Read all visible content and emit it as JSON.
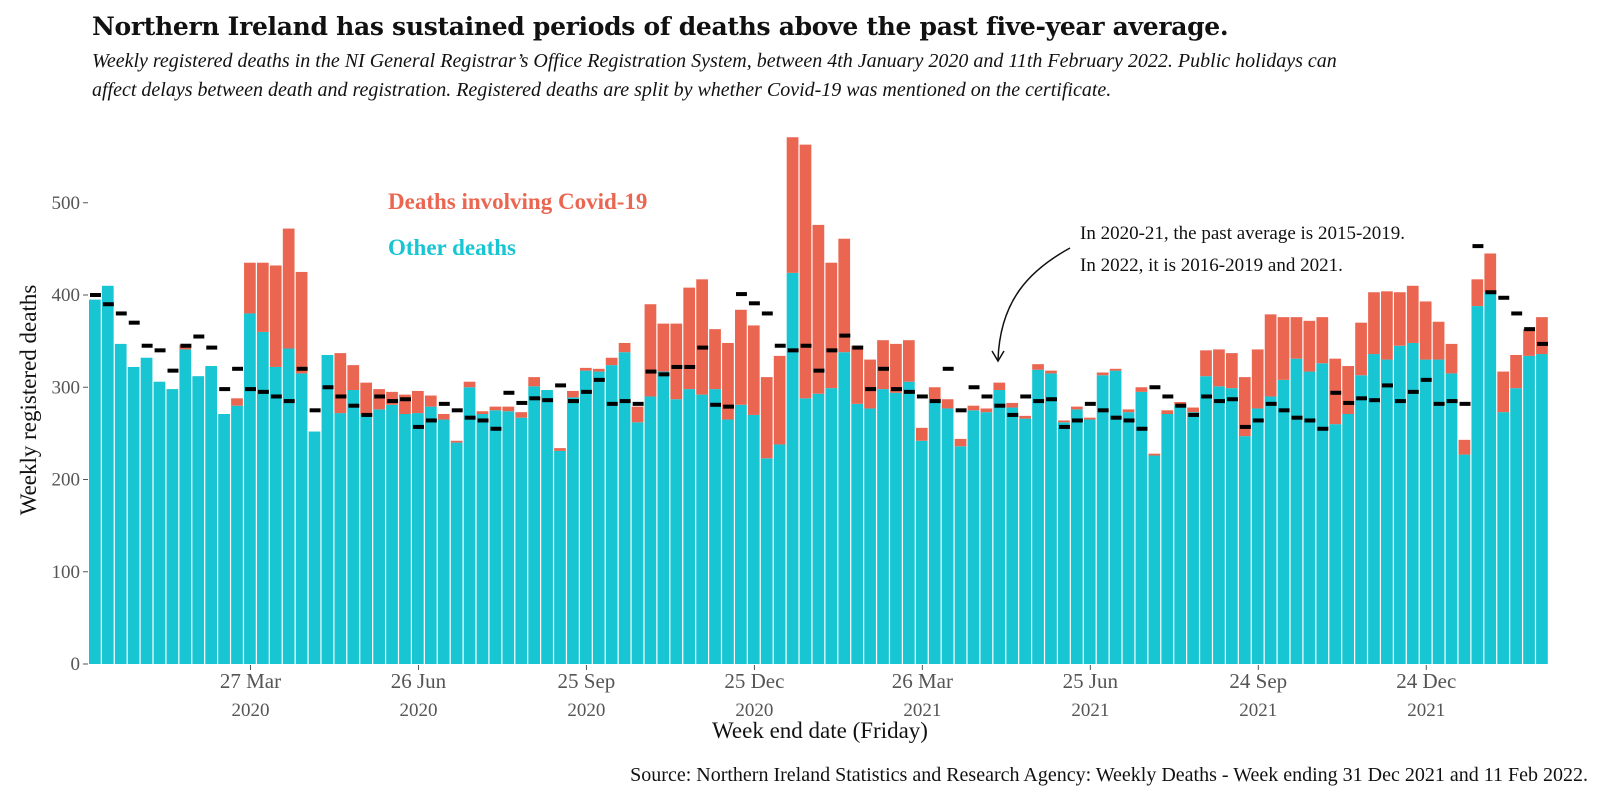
{
  "title": "Northern Ireland has sustained periods of deaths above the past five-year average.",
  "subtitle": "Weekly registered deaths in the NI General Registrar’s Office Registration System, between 4th January 2020 and 11th February 2022. Public holidays can affect delays between death and registration. Registered deaths are split by whether Covid-19 was mentioned on the certificate.",
  "source": "Source: Northern Ireland Statistics and Research Agency: Weekly Deaths - Week ending 31 Dec 2021 and 11 Feb 2022.",
  "annotation": {
    "line1": "In 2020-21, the past average is 2015-2019.",
    "line2": "In 2022, it is 2016-2019 and 2021."
  },
  "colors": {
    "covid": "#EB6651",
    "other": "#17C5D3",
    "average": "#000000"
  },
  "chart_data": {
    "type": "bar",
    "stacked": true,
    "xlabel": "Week end date (Friday)",
    "ylabel": "Weekly registered deaths",
    "ylim": [
      0,
      560
    ],
    "yticks": [
      0,
      100,
      200,
      300,
      400,
      500
    ],
    "x_tick_labels": [
      {
        "week": 12,
        "line1": "27 Mar",
        "line2": "2020"
      },
      {
        "week": 25,
        "line1": "26 Jun",
        "line2": "2020"
      },
      {
        "week": 38,
        "line1": "25 Sep",
        "line2": "2020"
      },
      {
        "week": 51,
        "line1": "25 Dec",
        "line2": "2020"
      },
      {
        "week": 64,
        "line1": "26 Mar",
        "line2": "2021"
      },
      {
        "week": 77,
        "line1": "25 Jun",
        "line2": "2021"
      },
      {
        "week": 90,
        "line1": "24 Sep",
        "line2": "2021"
      },
      {
        "week": 103,
        "line1": "24 Dec",
        "line2": "2021"
      }
    ],
    "grid": false,
    "legend": [
      {
        "name": "Deaths involving Covid-19",
        "color": "#EB6651"
      },
      {
        "name": "Other deaths",
        "color": "#17C5D3"
      }
    ],
    "legend_position": "top-left",
    "series": [
      {
        "name": "Other deaths",
        "values": [
          395,
          410,
          347,
          322,
          332,
          306,
          298,
          341,
          312,
          323,
          271,
          280,
          380,
          360,
          322,
          342,
          315,
          252,
          335,
          272,
          297,
          271,
          276,
          281,
          271,
          272,
          279,
          265,
          240,
          300,
          271,
          275,
          274,
          267,
          301,
          297,
          231,
          289,
          318,
          317,
          324,
          338,
          262,
          290,
          317,
          287,
          298,
          292,
          298,
          265,
          281,
          270,
          223,
          238,
          424,
          288,
          293,
          299,
          338,
          282,
          277,
          298,
          294,
          306,
          242,
          287,
          277,
          236,
          275,
          273,
          297,
          278,
          266,
          319,
          315,
          262,
          276,
          265,
          313,
          318,
          273,
          295,
          226,
          271,
          281,
          273,
          312,
          301,
          299,
          247,
          277,
          290,
          308,
          331,
          317,
          326,
          260,
          271,
          313,
          336,
          330,
          345,
          348,
          330,
          330,
          315,
          227,
          388,
          403,
          273,
          299,
          334,
          336
        ],
        "_note": "estimated from pixel heights"
      },
      {
        "name": "Deaths involving Covid-19",
        "values": [
          0,
          0,
          0,
          0,
          0,
          0,
          0,
          5,
          0,
          0,
          0,
          8,
          55,
          75,
          110,
          130,
          110,
          0,
          0,
          65,
          27,
          34,
          22,
          14,
          21,
          24,
          12,
          6,
          2,
          6,
          3,
          4,
          5,
          6,
          10,
          0,
          3,
          7,
          3,
          3,
          8,
          10,
          17,
          100,
          52,
          82,
          110,
          125,
          65,
          83,
          103,
          97,
          88,
          96,
          147,
          275,
          183,
          136,
          123,
          63,
          53,
          53,
          53,
          45,
          14,
          13,
          10,
          8,
          5,
          4,
          8,
          5,
          3,
          6,
          3,
          2,
          3,
          2,
          3,
          2,
          3,
          5,
          2,
          4,
          3,
          5,
          28,
          40,
          38,
          64,
          64,
          89,
          68,
          45,
          55,
          50,
          71,
          52,
          57,
          67,
          74,
          58,
          62,
          63,
          41,
          32,
          16,
          29,
          42,
          44,
          36,
          29,
          40
        ]
      }
    ],
    "average": [
      400,
      390,
      380,
      370,
      345,
      340,
      318,
      345,
      355,
      343,
      298,
      320,
      298,
      295,
      290,
      285,
      320,
      275,
      300,
      290,
      280,
      270,
      290,
      285,
      287,
      257,
      264,
      282,
      275,
      267,
      264,
      255,
      294,
      283,
      288,
      286,
      302,
      285,
      295,
      308,
      282,
      285,
      282,
      317,
      314,
      322,
      322,
      343,
      281,
      279,
      401,
      391,
      380,
      345,
      340,
      345,
      318,
      340,
      356,
      343,
      298,
      320,
      298,
      295,
      290,
      285,
      320,
      275,
      300,
      290,
      280,
      270,
      290,
      285,
      287,
      257,
      264,
      282,
      275,
      267,
      264,
      255,
      300,
      290,
      280,
      270,
      290,
      285,
      287,
      257,
      264,
      282,
      275,
      267,
      264,
      255,
      294,
      283,
      288,
      286,
      302,
      285,
      295,
      308,
      282,
      285,
      282,
      453,
      403,
      397,
      380,
      363,
      347
    ]
  }
}
